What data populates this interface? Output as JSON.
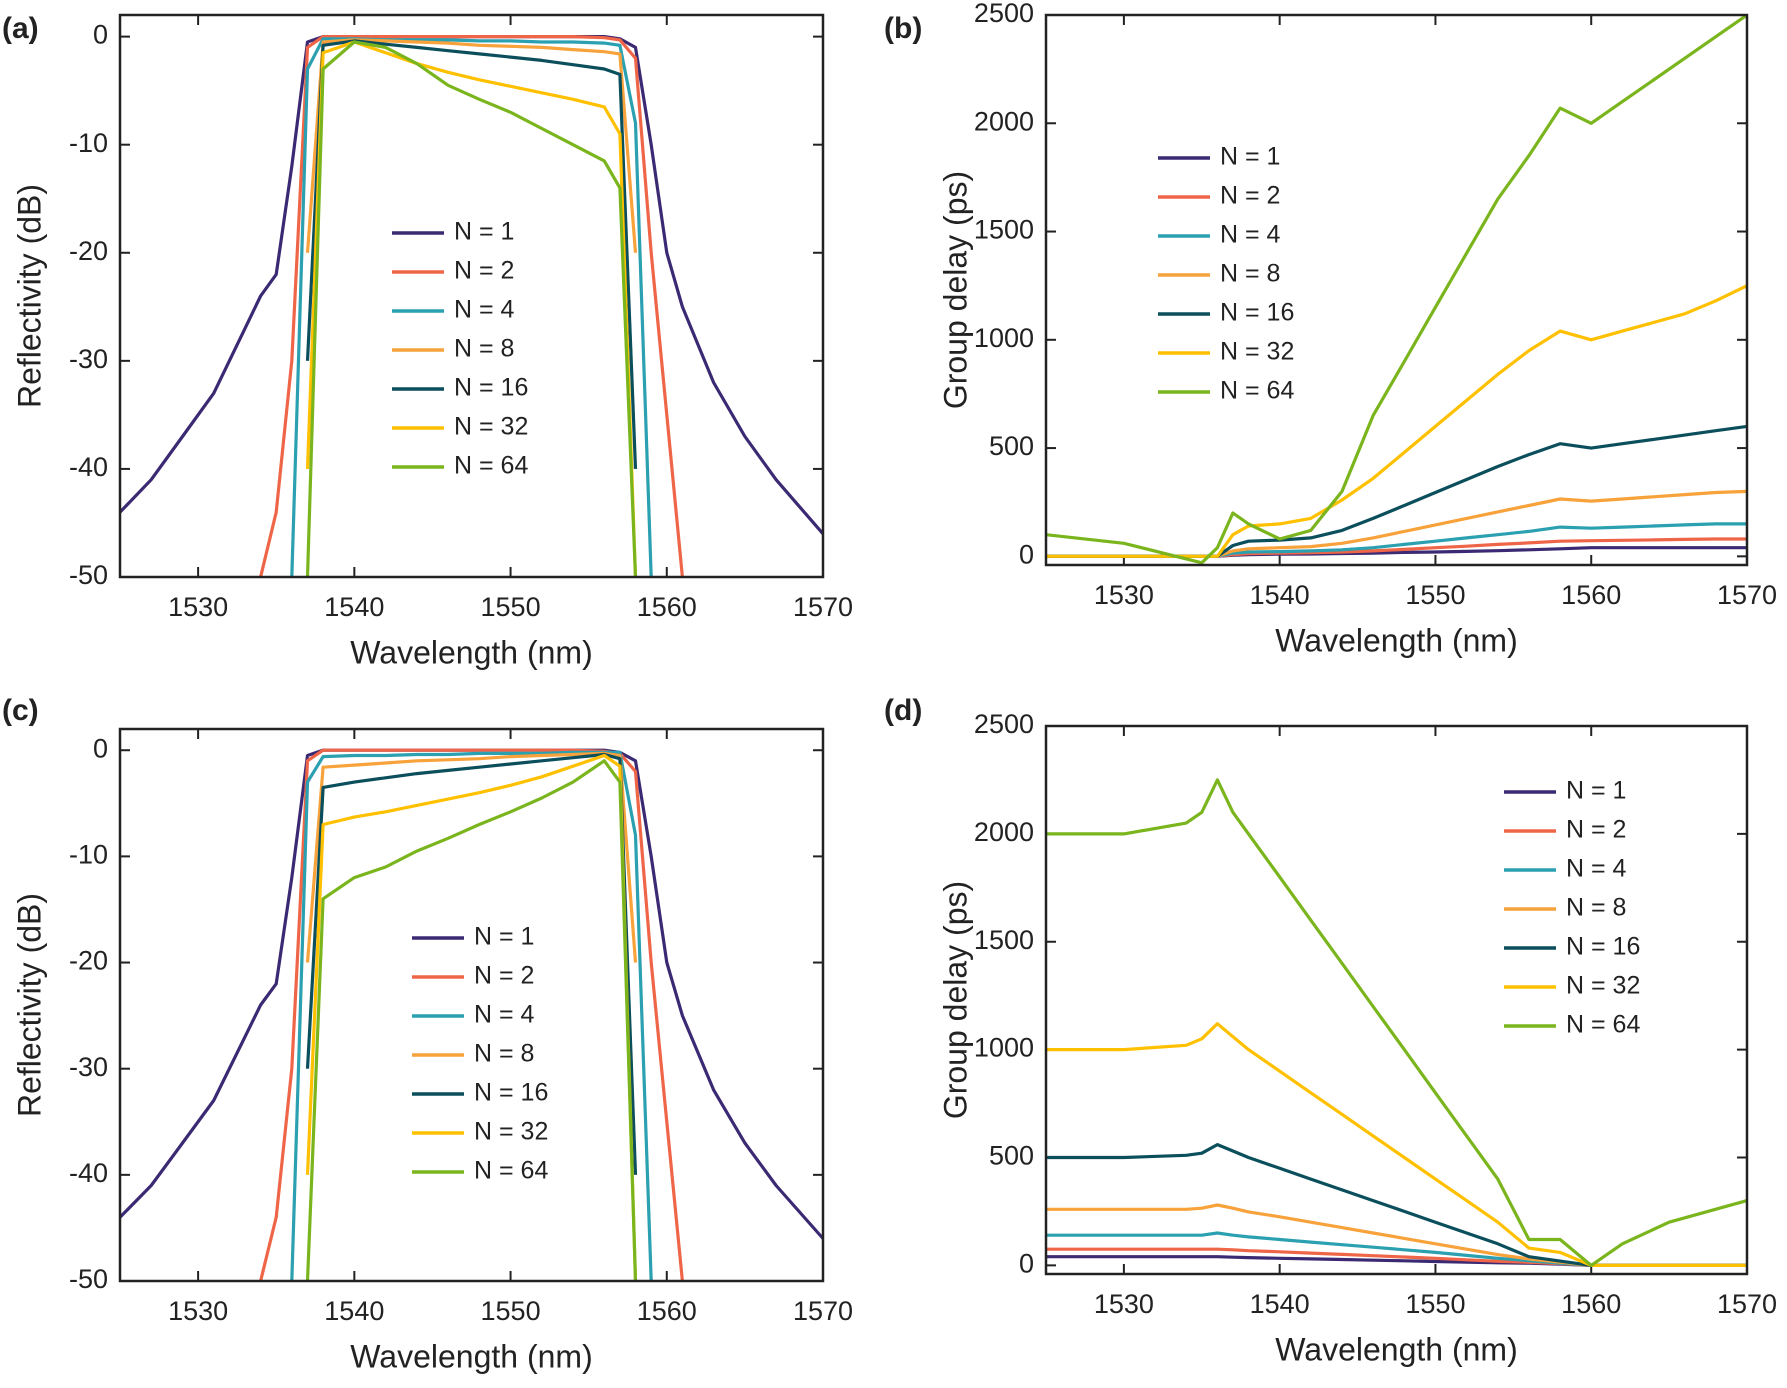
{
  "chart_data": [
    {
      "type": "line",
      "panel_label": "(a)",
      "x_label": "Wavelength (nm)",
      "y_label": "Reflectivity (dB)",
      "xlim": [
        1525,
        1570
      ],
      "xticks": [
        1530,
        1540,
        1550,
        1560,
        1570
      ],
      "ylim": [
        -50,
        2
      ],
      "yticks": [
        -50,
        -40,
        -30,
        -20,
        -10,
        0
      ],
      "x": [
        1525,
        1527,
        1529,
        1531,
        1533,
        1534,
        1535,
        1536,
        1537,
        1538,
        1540,
        1542,
        1544,
        1546,
        1548,
        1550,
        1552,
        1554,
        1556,
        1557,
        1558,
        1559,
        1560,
        1561,
        1563,
        1565,
        1567,
        1570
      ],
      "series": [
        {
          "name": "N = 1",
          "color": "#3b2a73",
          "values": [
            -44,
            -41,
            -37,
            -33,
            -27,
            -24,
            -22,
            -12,
            -0.5,
            0,
            0,
            0,
            0,
            0,
            0,
            0,
            0,
            0,
            0,
            -0.2,
            -1,
            -10,
            -20,
            -25,
            -32,
            -37,
            -41,
            -46
          ]
        },
        {
          "name": "N = 2",
          "color": "#ef6548",
          "values": [
            null,
            null,
            null,
            null,
            null,
            -50,
            -44,
            -30,
            -1,
            0,
            0,
            0,
            0,
            0,
            0,
            0,
            0,
            0,
            -0.1,
            -0.3,
            -2,
            -20,
            -35,
            -50,
            null,
            null,
            null,
            null
          ]
        },
        {
          "name": "N = 4",
          "color": "#2ba0b0",
          "values": [
            null,
            null,
            null,
            null,
            null,
            null,
            null,
            -50,
            -3,
            -0.2,
            -0.2,
            -0.3,
            -0.3,
            -0.3,
            -0.4,
            -0.4,
            -0.5,
            -0.5,
            -0.6,
            -0.8,
            -8,
            -50,
            null,
            null,
            null,
            null,
            null,
            null
          ]
        },
        {
          "name": "N = 8",
          "color": "#f7a23b",
          "values": [
            null,
            null,
            null,
            null,
            null,
            null,
            null,
            null,
            -20,
            -0.5,
            -0.3,
            -0.4,
            -0.5,
            -0.6,
            -0.8,
            -0.9,
            -1,
            -1.2,
            -1.4,
            -1.6,
            -20,
            null,
            null,
            null,
            null,
            null,
            null,
            null
          ]
        },
        {
          "name": "N = 16",
          "color": "#0b4f5c",
          "values": [
            null,
            null,
            null,
            null,
            null,
            null,
            null,
            null,
            -30,
            -0.8,
            -0.4,
            -0.7,
            -1,
            -1.3,
            -1.6,
            -1.9,
            -2.2,
            -2.6,
            -3,
            -3.5,
            -40,
            null,
            null,
            null,
            null,
            null,
            null,
            null
          ]
        },
        {
          "name": "N = 32",
          "color": "#ffc000",
          "values": [
            null,
            null,
            null,
            null,
            null,
            null,
            null,
            null,
            -40,
            -1.5,
            -0.5,
            -1.5,
            -2.5,
            -3.3,
            -4,
            -4.6,
            -5.2,
            -5.8,
            -6.5,
            -9,
            -50,
            null,
            null,
            null,
            null,
            null,
            null,
            null
          ]
        },
        {
          "name": "N = 64",
          "color": "#7ab51d",
          "values": [
            null,
            null,
            null,
            null,
            null,
            null,
            null,
            null,
            -50,
            -3,
            -0.5,
            -1,
            -2.5,
            -4.5,
            -5.8,
            -7,
            -8.5,
            -10,
            -11.5,
            -14,
            -50,
            null,
            null,
            null,
            null,
            null,
            null,
            null
          ]
        }
      ]
    },
    {
      "type": "line",
      "panel_label": "(b)",
      "x_label": "Wavelength (nm)",
      "y_label": "Group delay (ps)",
      "xlim": [
        1525,
        1570
      ],
      "xticks": [
        1530,
        1540,
        1550,
        1560,
        1570
      ],
      "ylim": [
        -40,
        2500
      ],
      "yticks": [
        0,
        500,
        1000,
        1500,
        2000,
        2500
      ],
      "x": [
        1525,
        1530,
        1535,
        1536,
        1537,
        1538,
        1540,
        1542,
        1544,
        1546,
        1548,
        1550,
        1552,
        1554,
        1556,
        1558,
        1560,
        1562,
        1564,
        1566,
        1568,
        1570
      ],
      "series": [
        {
          "name": "N = 1",
          "color": "#3b2a73",
          "values": [
            0,
            0,
            0,
            0,
            5,
            8,
            10,
            11,
            13,
            15,
            18,
            20,
            23,
            26,
            30,
            35,
            40,
            40,
            40,
            40,
            40,
            40
          ]
        },
        {
          "name": "N = 2",
          "color": "#ef6548",
          "values": [
            0,
            0,
            0,
            0,
            8,
            12,
            15,
            17,
            20,
            25,
            32,
            40,
            47,
            55,
            62,
            70,
            72,
            74,
            76,
            78,
            80,
            80
          ]
        },
        {
          "name": "N = 4",
          "color": "#2ba0b0",
          "values": [
            0,
            0,
            0,
            0,
            15,
            20,
            22,
            25,
            30,
            40,
            55,
            70,
            85,
            100,
            115,
            135,
            130,
            135,
            140,
            145,
            150,
            150
          ]
        },
        {
          "name": "N = 8",
          "color": "#f7a23b",
          "values": [
            0,
            0,
            0,
            0,
            25,
            35,
            40,
            45,
            60,
            85,
            115,
            145,
            175,
            205,
            235,
            265,
            255,
            265,
            275,
            285,
            295,
            300
          ]
        },
        {
          "name": "N = 16",
          "color": "#0b4f5c",
          "values": [
            0,
            0,
            0,
            0,
            50,
            70,
            75,
            85,
            120,
            175,
            235,
            295,
            355,
            415,
            470,
            520,
            500,
            520,
            540,
            560,
            580,
            600
          ]
        },
        {
          "name": "N = 32",
          "color": "#ffc000",
          "values": [
            0,
            0,
            0,
            0,
            100,
            140,
            150,
            175,
            260,
            360,
            480,
            600,
            720,
            840,
            950,
            1040,
            1000,
            1040,
            1080,
            1120,
            1180,
            1250
          ]
        },
        {
          "name": "N = 64",
          "color": "#7ab51d",
          "values": [
            100,
            60,
            -30,
            40,
            200,
            150,
            80,
            120,
            300,
            650,
            900,
            1150,
            1400,
            1650,
            1850,
            2070,
            2000,
            2100,
            2200,
            2300,
            2400,
            2500
          ]
        }
      ]
    },
    {
      "type": "line",
      "panel_label": "(c)",
      "x_label": "Wavelength (nm)",
      "y_label": "Reflectivity (dB)",
      "xlim": [
        1525,
        1570
      ],
      "xticks": [
        1530,
        1540,
        1550,
        1560,
        1570
      ],
      "ylim": [
        -50,
        2
      ],
      "yticks": [
        -50,
        -40,
        -30,
        -20,
        -10,
        0
      ],
      "x": [
        1525,
        1527,
        1529,
        1531,
        1533,
        1534,
        1535,
        1536,
        1537,
        1538,
        1540,
        1542,
        1544,
        1546,
        1548,
        1550,
        1552,
        1554,
        1556,
        1557,
        1558,
        1559,
        1560,
        1561,
        1563,
        1565,
        1567,
        1570
      ],
      "series": [
        {
          "name": "N = 1",
          "color": "#3b2a73",
          "values": [
            -44,
            -41,
            -37,
            -33,
            -27,
            -24,
            -22,
            -12,
            -0.5,
            0,
            0,
            0,
            0,
            0,
            0,
            0,
            0,
            0,
            0,
            -0.2,
            -1,
            -10,
            -20,
            -25,
            -32,
            -37,
            -41,
            -46
          ]
        },
        {
          "name": "N = 2",
          "color": "#ef6548",
          "values": [
            null,
            null,
            null,
            null,
            null,
            -50,
            -44,
            -30,
            -1,
            0,
            0,
            0,
            0,
            0,
            0,
            0,
            0,
            0,
            -0.1,
            -0.3,
            -2,
            -20,
            -35,
            -50,
            null,
            null,
            null,
            null
          ]
        },
        {
          "name": "N = 4",
          "color": "#2ba0b0",
          "values": [
            null,
            null,
            null,
            null,
            null,
            null,
            null,
            -50,
            -3,
            -0.6,
            -0.5,
            -0.5,
            -0.4,
            -0.4,
            -0.3,
            -0.3,
            -0.3,
            -0.2,
            -0.2,
            -0.2,
            -8,
            -50,
            null,
            null,
            null,
            null,
            null,
            null
          ]
        },
        {
          "name": "N = 8",
          "color": "#f7a23b",
          "values": [
            null,
            null,
            null,
            null,
            null,
            null,
            null,
            null,
            -20,
            -1.6,
            -1.4,
            -1.2,
            -1,
            -0.9,
            -0.8,
            -0.6,
            -0.5,
            -0.4,
            -0.3,
            -0.5,
            -20,
            null,
            null,
            null,
            null,
            null,
            null,
            null
          ]
        },
        {
          "name": "N = 16",
          "color": "#0b4f5c",
          "values": [
            null,
            null,
            null,
            null,
            null,
            null,
            null,
            null,
            -30,
            -3.5,
            -3,
            -2.6,
            -2.2,
            -1.9,
            -1.6,
            -1.3,
            -1,
            -0.7,
            -0.4,
            -0.8,
            -40,
            null,
            null,
            null,
            null,
            null,
            null,
            null
          ]
        },
        {
          "name": "N = 32",
          "color": "#ffc000",
          "values": [
            null,
            null,
            null,
            null,
            null,
            null,
            null,
            null,
            -40,
            -7,
            -6.3,
            -5.8,
            -5.2,
            -4.6,
            -4,
            -3.3,
            -2.5,
            -1.5,
            -0.5,
            -1.5,
            -50,
            null,
            null,
            null,
            null,
            null,
            null,
            null
          ]
        },
        {
          "name": "N = 64",
          "color": "#7ab51d",
          "values": [
            null,
            null,
            null,
            null,
            null,
            null,
            null,
            null,
            -50,
            -14,
            -12,
            -11,
            -9.5,
            -8.3,
            -7,
            -5.8,
            -4.5,
            -3,
            -1,
            -3,
            -50,
            null,
            null,
            null,
            null,
            null,
            null,
            null
          ]
        }
      ]
    },
    {
      "type": "line",
      "panel_label": "(d)",
      "x_label": "Wavelength (nm)",
      "y_label": "Group delay (ps)",
      "xlim": [
        1525,
        1570
      ],
      "xticks": [
        1530,
        1540,
        1550,
        1560,
        1570
      ],
      "ylim": [
        -40,
        2500
      ],
      "yticks": [
        0,
        500,
        1000,
        1500,
        2000,
        2500
      ],
      "x": [
        1525,
        1530,
        1534,
        1535,
        1536,
        1537,
        1538,
        1540,
        1542,
        1544,
        1546,
        1548,
        1550,
        1552,
        1554,
        1556,
        1558,
        1560,
        1562,
        1565,
        1570
      ],
      "series": [
        {
          "name": "N = 1",
          "color": "#3b2a73",
          "values": [
            40,
            40,
            40,
            40,
            40,
            38,
            36,
            33,
            30,
            27,
            24,
            21,
            18,
            15,
            12,
            10,
            6,
            0,
            0,
            0,
            0
          ]
        },
        {
          "name": "N = 2",
          "color": "#ef6548",
          "values": [
            75,
            75,
            75,
            75,
            75,
            72,
            68,
            63,
            57,
            51,
            45,
            39,
            33,
            26,
            19,
            14,
            8,
            0,
            0,
            0,
            0
          ]
        },
        {
          "name": "N = 4",
          "color": "#2ba0b0",
          "values": [
            140,
            140,
            140,
            140,
            150,
            140,
            132,
            120,
            108,
            96,
            84,
            72,
            60,
            46,
            33,
            22,
            10,
            0,
            0,
            0,
            0
          ]
        },
        {
          "name": "N = 8",
          "color": "#f7a23b",
          "values": [
            260,
            260,
            260,
            265,
            280,
            265,
            248,
            225,
            200,
            175,
            150,
            125,
            100,
            75,
            50,
            30,
            15,
            0,
            0,
            0,
            0
          ]
        },
        {
          "name": "N = 16",
          "color": "#0b4f5c",
          "values": [
            500,
            500,
            510,
            520,
            560,
            530,
            500,
            450,
            400,
            350,
            300,
            250,
            200,
            150,
            100,
            40,
            20,
            0,
            0,
            0,
            0
          ]
        },
        {
          "name": "N = 32",
          "color": "#ffc000",
          "values": [
            1000,
            1000,
            1020,
            1050,
            1120,
            1060,
            1000,
            900,
            800,
            700,
            600,
            500,
            400,
            300,
            200,
            80,
            60,
            0,
            0,
            0,
            0
          ]
        },
        {
          "name": "N = 64",
          "color": "#7ab51d",
          "values": [
            2000,
            2000,
            2050,
            2100,
            2250,
            2100,
            2000,
            1800,
            1600,
            1400,
            1200,
            1000,
            800,
            600,
            400,
            120,
            120,
            0,
            100,
            200,
            300
          ]
        }
      ]
    }
  ]
}
